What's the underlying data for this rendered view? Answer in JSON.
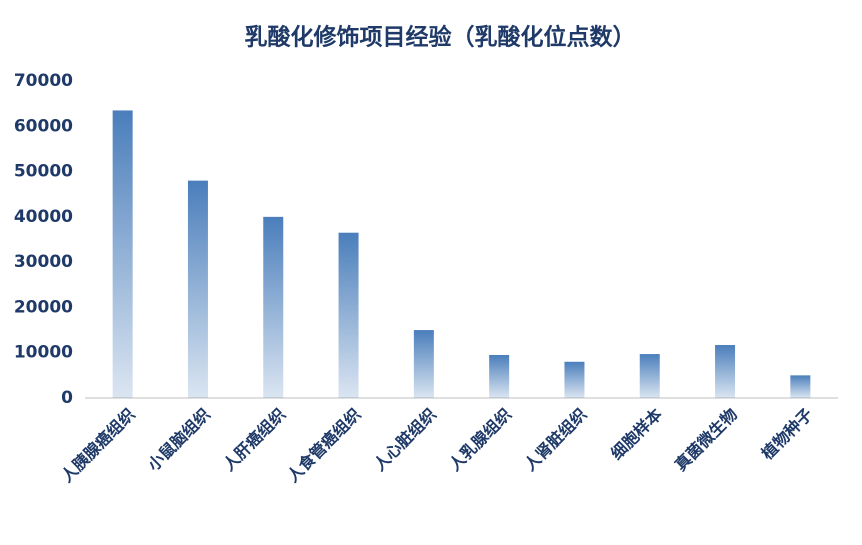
{
  "chart_data": {
    "type": "bar",
    "title": "乳酸化修饰项目经验（乳酸化位点数）",
    "categories": [
      "人胰腺癌组织",
      "小鼠脑组织",
      "人肝癌组织",
      "人食管癌组织",
      "人心脏组织",
      "人乳腺组织",
      "人肾脏组织",
      "细胞样本",
      "真菌微生物",
      "植物种子"
    ],
    "values": [
      63500,
      48000,
      40000,
      36500,
      15000,
      9500,
      8000,
      9700,
      11700,
      5000
    ],
    "color": "#4a7ebb",
    "ylim": [
      0,
      70000
    ],
    "yticks": [
      0,
      10000,
      20000,
      30000,
      40000,
      50000,
      60000,
      70000
    ],
    "grid": false
  }
}
